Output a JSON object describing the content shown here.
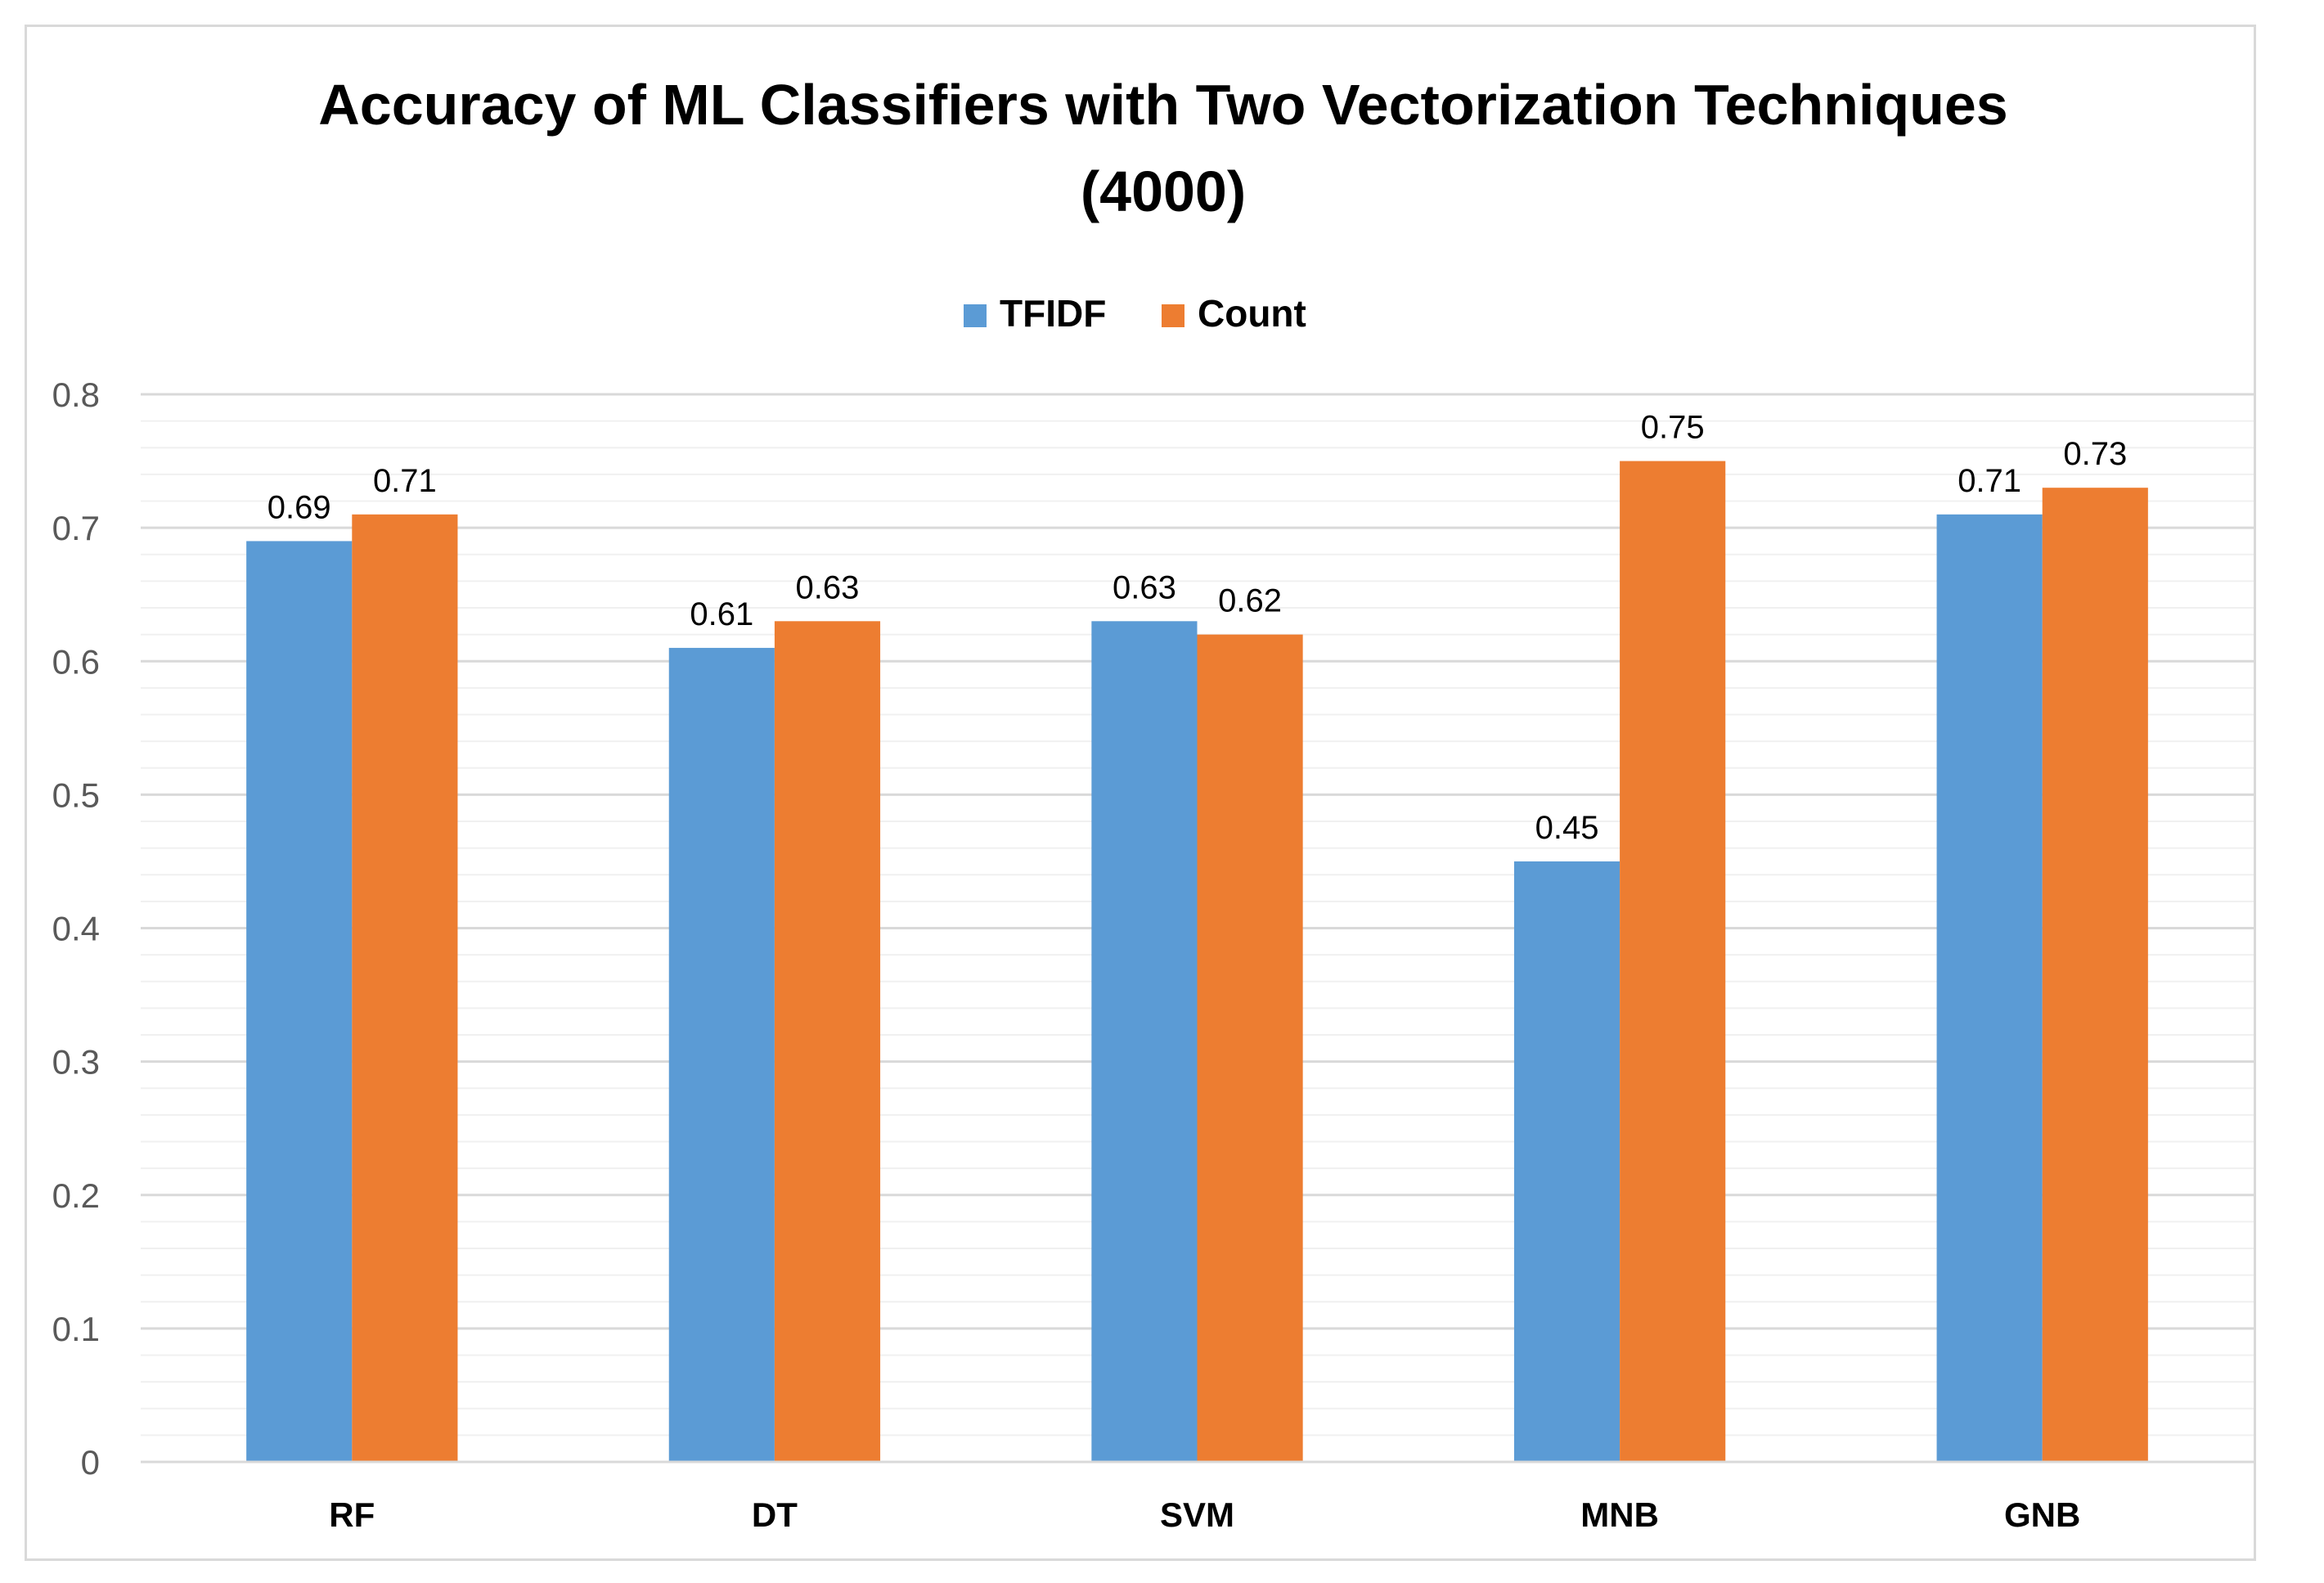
{
  "chart_data": {
    "type": "bar",
    "title_lines": [
      "Accuracy of ML Classifiers with Two Vectorization Techniques",
      "(4000)"
    ],
    "categories": [
      "RF",
      "DT",
      "SVM",
      "MNB",
      "GNB"
    ],
    "series": [
      {
        "name": "TFIDF",
        "color": "#5b9bd5",
        "values": [
          0.69,
          0.61,
          0.63,
          0.45,
          0.71
        ],
        "labels": [
          "0.69",
          "0.61",
          "0.63",
          "0.45",
          "0.71"
        ]
      },
      {
        "name": "Count",
        "color": "#ed7d31",
        "values": [
          0.71,
          0.63,
          0.62,
          0.75,
          0.73
        ],
        "labels": [
          "0.71",
          "0.63",
          "0.62",
          "0.75",
          "0.73"
        ]
      }
    ],
    "ylim": [
      0,
      0.8
    ],
    "yticks": [
      "0",
      "0.1",
      "0.2",
      "0.3",
      "0.4",
      "0.5",
      "0.6",
      "0.7",
      "0.8"
    ],
    "minor_step": 0.02,
    "legend_position": "top-center",
    "grid": true,
    "xlabel": "",
    "ylabel": ""
  }
}
